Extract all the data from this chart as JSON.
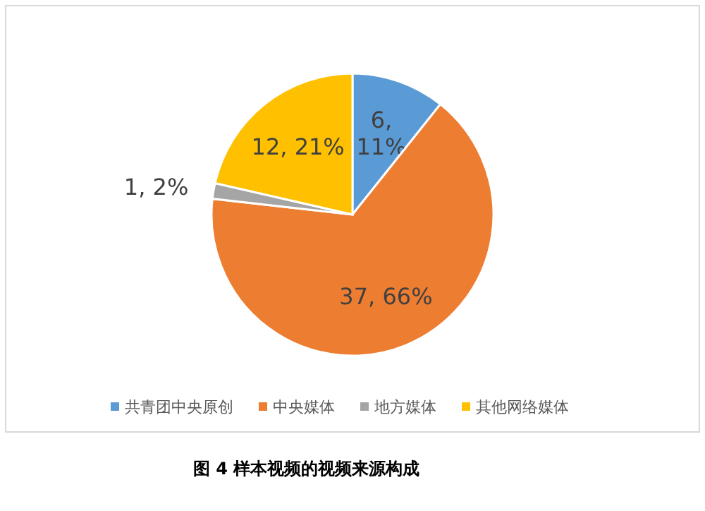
{
  "chart_data": {
    "type": "pie",
    "categories": [
      "共青团中央原创",
      "中央媒体",
      "地方媒体",
      "其他网络媒体"
    ],
    "values": [
      6,
      37,
      1,
      12
    ],
    "colors": [
      "#5b9bd5",
      "#ed7d31",
      "#a5a5a5",
      "#ffc000"
    ],
    "value_labels": [
      "6, 11%",
      "37, 66%",
      "1, 2%",
      "12, 21%"
    ],
    "legend": "bottom",
    "annotations": [
      "图 4 样本视频的视频来源构成"
    ]
  }
}
